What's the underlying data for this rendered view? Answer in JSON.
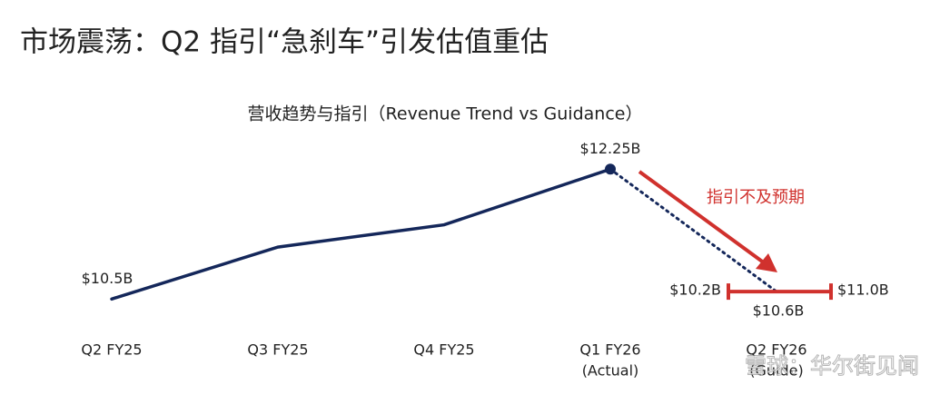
{
  "chart_data": {
    "type": "line",
    "title": "市场震荡：Q2 指引“急刹车”引发估值重估",
    "subtitle": "营收趋势与指引（Revenue Trend vs Guidance）",
    "categories": [
      "Q2 FY25",
      "Q3 FY25",
      "Q4 FY25",
      "Q1 FY26",
      "Q2 FY26"
    ],
    "category_notes": [
      null,
      null,
      null,
      "(Actual)",
      "(Guide)"
    ],
    "series": [
      {
        "name": "Actual",
        "color": "#14275a",
        "style": "solid",
        "values": [
          10.5,
          11.2,
          11.5,
          12.25,
          null
        ],
        "value_labels": [
          "$10.5B",
          null,
          null,
          "$12.25B",
          null
        ]
      },
      {
        "name": "Guide",
        "color": "#14275a",
        "style": "dotted",
        "values": [
          null,
          null,
          null,
          12.25,
          10.6
        ],
        "value_labels": [
          null,
          null,
          null,
          null,
          "$10.6B"
        ]
      }
    ],
    "guide_range": {
      "low": 10.2,
      "high": 11.0,
      "low_label": "$10.2B",
      "high_label": "$11.0B",
      "color": "#d0312d"
    },
    "annotation": {
      "text": "指引不及预期",
      "color": "#d0312d"
    },
    "watermark": "雪球：华尔街见闻",
    "ylim": [
      9.5,
      13
    ]
  }
}
